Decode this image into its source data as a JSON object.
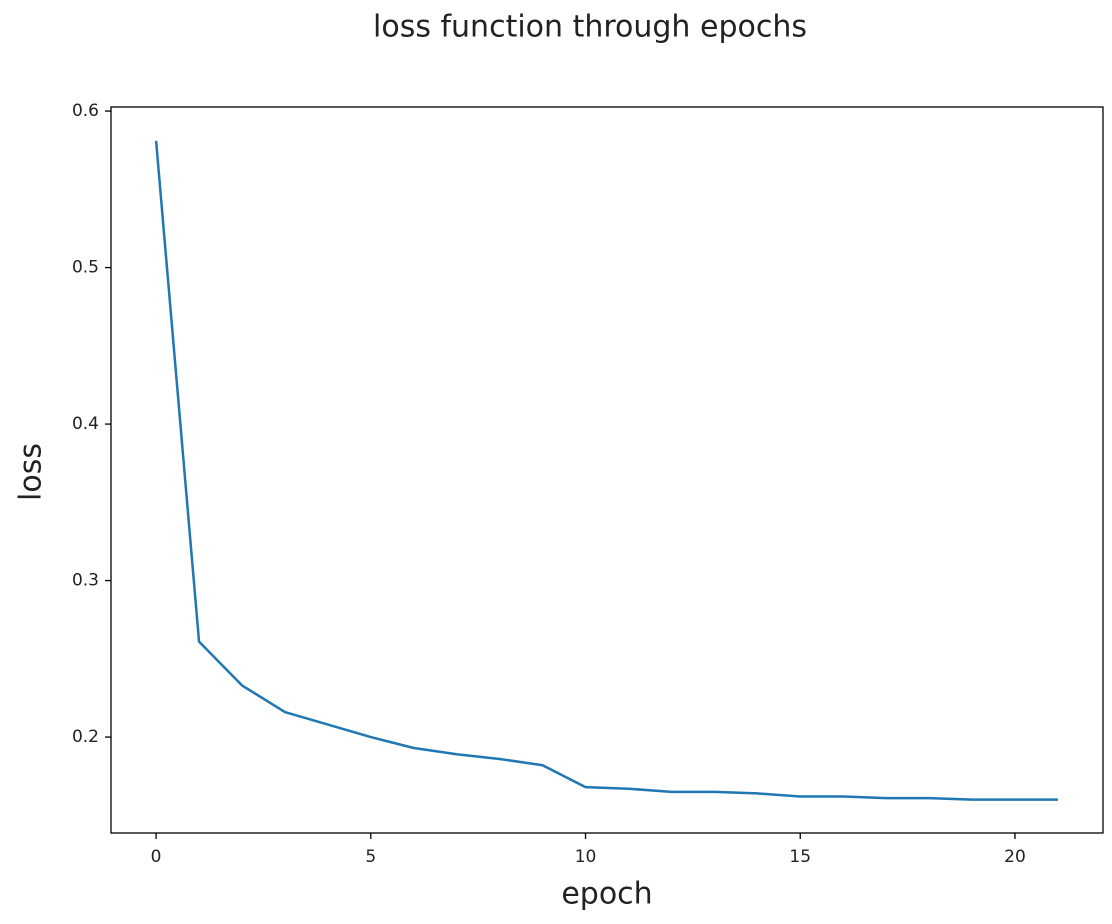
{
  "chart_data": {
    "type": "line",
    "title": "loss function through epochs",
    "xlabel": "epoch",
    "ylabel": "loss",
    "x": [
      0,
      1,
      2,
      3,
      4,
      5,
      6,
      7,
      8,
      9,
      10,
      11,
      12,
      13,
      14,
      15,
      16,
      17,
      18,
      19,
      20,
      21
    ],
    "series": [
      {
        "name": "loss",
        "color": "#1f77b4",
        "values": [
          0.581,
          0.261,
          0.233,
          0.216,
          0.208,
          0.2,
          0.193,
          0.189,
          0.186,
          0.182,
          0.168,
          0.167,
          0.165,
          0.165,
          0.164,
          0.162,
          0.162,
          0.161,
          0.161,
          0.16,
          0.16,
          0.16
        ]
      }
    ],
    "xlim": [
      -1.05,
      22.05
    ],
    "xticks": [
      0,
      5,
      10,
      15,
      20
    ],
    "ylim": [
      0.1387,
      0.6026
    ],
    "yticks": [
      0.2,
      0.3,
      0.4,
      0.5,
      0.6
    ],
    "grid": false
  }
}
